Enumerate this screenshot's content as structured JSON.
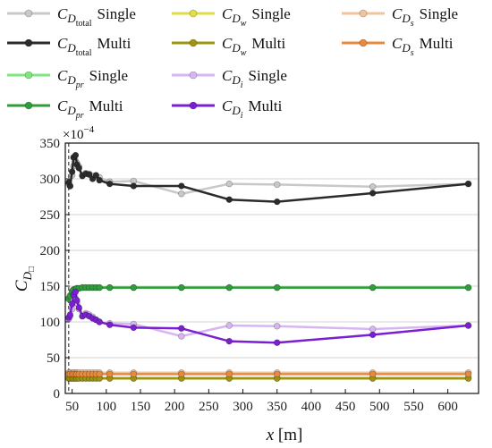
{
  "chart_data": {
    "type": "line",
    "xlabel_symbol": "x",
    "xlabel_unit": "[m]",
    "ylabel_symbol": "C",
    "ylabel_sub": "D",
    "ylabel_subsub": "□",
    "exponent": "×10",
    "exponent_power": "−4",
    "xlim": [
      40,
      645
    ],
    "ylim": [
      0,
      350
    ],
    "xticks": [
      50,
      100,
      150,
      200,
      250,
      300,
      350,
      400,
      450,
      500,
      550,
      600
    ],
    "yticks": [
      0,
      50,
      100,
      150,
      200,
      250,
      300,
      350
    ],
    "grid": "horizontal",
    "legend_position": "top",
    "x": [
      45,
      47,
      50,
      52,
      55,
      57,
      60,
      65,
      70,
      75,
      80,
      85,
      90,
      105,
      140,
      210,
      280,
      350,
      490,
      630
    ],
    "series": [
      {
        "sym": "C",
        "sub": "D",
        "subsub": "total",
        "mode": "Single",
        "color": "#c8c8c8",
        "values": [
          293,
          290,
          305,
          318,
          325,
          322,
          317,
          305,
          308,
          307,
          304,
          303,
          302,
          296,
          297,
          279,
          293,
          292,
          289,
          293
        ]
      },
      {
        "sym": "C",
        "sub": "D",
        "subsub": "total",
        "mode": "Multi",
        "color": "#2b2b2b",
        "values": [
          295,
          290,
          310,
          330,
          333,
          320,
          315,
          304,
          307,
          306,
          300,
          305,
          298,
          293,
          290,
          290,
          271,
          268,
          280,
          293
        ]
      },
      {
        "sym": "C",
        "sub": "D",
        "subsub": "w",
        "mode": "Single",
        "color": "#e0de44",
        "values": [
          22,
          22,
          22,
          22,
          22,
          22,
          22,
          22,
          22,
          22,
          22,
          22,
          22,
          22,
          22,
          22,
          22,
          22,
          22,
          22
        ]
      },
      {
        "sym": "C",
        "sub": "D",
        "subsub": "w",
        "mode": "Multi",
        "color": "#9e9410",
        "values": [
          21,
          21,
          21,
          21,
          21,
          21,
          21,
          21,
          21,
          21,
          21,
          21,
          21,
          21,
          21,
          21,
          21,
          21,
          21,
          21
        ]
      },
      {
        "sym": "C",
        "sub": "D",
        "subsub": "s",
        "mode": "Single",
        "color": "#f2c49e",
        "values": [
          29,
          29,
          29,
          29,
          29,
          29,
          29,
          29,
          29,
          29,
          29,
          29,
          29,
          29,
          29,
          29,
          29,
          29,
          29,
          29
        ]
      },
      {
        "sym": "C",
        "sub": "D",
        "subsub": "s",
        "mode": "Multi",
        "color": "#e88a3e",
        "values": [
          27,
          27,
          27,
          27,
          27,
          27,
          27,
          27,
          27,
          27,
          27,
          27,
          27,
          27,
          27,
          27,
          27,
          27,
          27,
          27
        ]
      },
      {
        "sym": "C",
        "sub": "D",
        "subsub": "pr",
        "mode": "Single",
        "color": "#7fe67f",
        "values": [
          133,
          137,
          143,
          145,
          146,
          147,
          147,
          148,
          148,
          148,
          148,
          148,
          148,
          148,
          148,
          148,
          148,
          148,
          148,
          148
        ]
      },
      {
        "sym": "C",
        "sub": "D",
        "subsub": "pr",
        "mode": "Multi",
        "color": "#2f9e3a",
        "values": [
          132,
          136,
          142,
          145,
          146,
          147,
          147,
          148,
          148,
          148,
          148,
          148,
          148,
          148,
          148,
          148,
          148,
          148,
          148,
          148
        ]
      },
      {
        "sym": "C",
        "sub": "D",
        "subsub": "i",
        "mode": "Single",
        "color": "#d7b5f2",
        "values": [
          104,
          108,
          118,
          130,
          133,
          126,
          118,
          108,
          112,
          110,
          107,
          103,
          100,
          98,
          97,
          80,
          95,
          94,
          90,
          95
        ]
      },
      {
        "sym": "C",
        "sub": "D",
        "subsub": "i",
        "mode": "Multi",
        "color": "#7a1fd1",
        "values": [
          106,
          110,
          125,
          138,
          142,
          130,
          120,
          108,
          110,
          108,
          105,
          103,
          100,
          96,
          92,
          91,
          73,
          71,
          82,
          95
        ]
      }
    ]
  }
}
